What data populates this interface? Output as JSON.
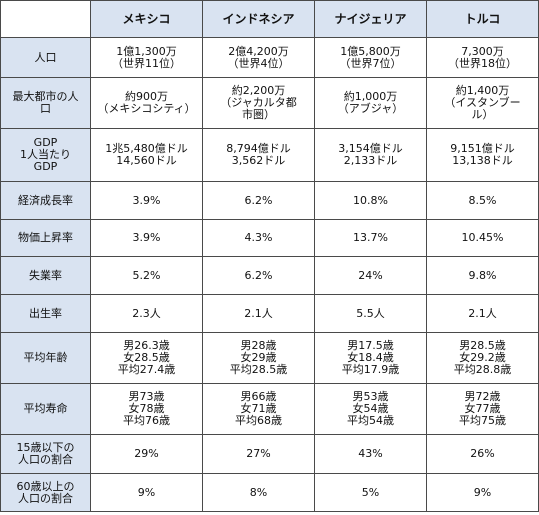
{
  "header": {
    "corner": "",
    "countries": [
      "メキシコ",
      "インドネシア",
      "ナイジェリア",
      "トルコ"
    ]
  },
  "rows": [
    {
      "label": "人口",
      "cells": [
        "1億1,300万\n（世界11位）",
        "2億4,200万\n（世界4位）",
        "1億5,800万\n（世界7位）",
        "7,300万\n（世界18位）"
      ]
    },
    {
      "label": "最大都市の人\n口",
      "cells": [
        "約900万\n（メキシコシティ）",
        "約2,200万\n（ジャカルタ都\n市圏）",
        "約1,000万\n（アブジャ）",
        "約1,400万\n（イスタンブー\nル）"
      ]
    },
    {
      "label": "GDP\n1人当たり\nGDP",
      "cells": [
        "1兆5,480億ドル\n14,560ドル",
        "8,794億ドル\n3,562ドル",
        "3,154億ドル\n2,133ドル",
        "9,151億ドル\n13,138ドル"
      ]
    },
    {
      "label": "経済成長率",
      "cells": [
        "3.9%",
        "6.2%",
        "10.8%",
        "8.5%"
      ]
    },
    {
      "label": "物価上昇率",
      "cells": [
        "3.9%",
        "4.3%",
        "13.7%",
        "10.45%"
      ]
    },
    {
      "label": "失業率",
      "cells": [
        "5.2%",
        "6.2%",
        "24%",
        "9.8%"
      ]
    },
    {
      "label": "出生率",
      "cells": [
        "2.3人",
        "2.1人",
        "5.5人",
        "2.1人"
      ]
    },
    {
      "label": "平均年齢",
      "cells": [
        "男26.3歳\n女28.5歳\n平均27.4歳",
        "男28歳\n女29歳\n平均28.5歳",
        "男17.5歳\n女18.4歳\n平均17.9歳",
        "男28.5歳\n女29.2歳\n平均28.8歳"
      ]
    },
    {
      "label": "平均寿命",
      "cells": [
        "男73歳\n女78歳\n平均76歳",
        "男66歳\n女71歳\n平均68歳",
        "男53歳\n女54歳\n平均54歳",
        "男72歳\n女77歳\n平均75歳"
      ]
    },
    {
      "label": "15歳以下の\n人口の割合",
      "cells": [
        "29%",
        "27%",
        "43%",
        "26%"
      ]
    },
    {
      "label": "60歳以上の\n人口の割合",
      "cells": [
        "9%",
        "8%",
        "5%",
        "9%"
      ]
    }
  ]
}
